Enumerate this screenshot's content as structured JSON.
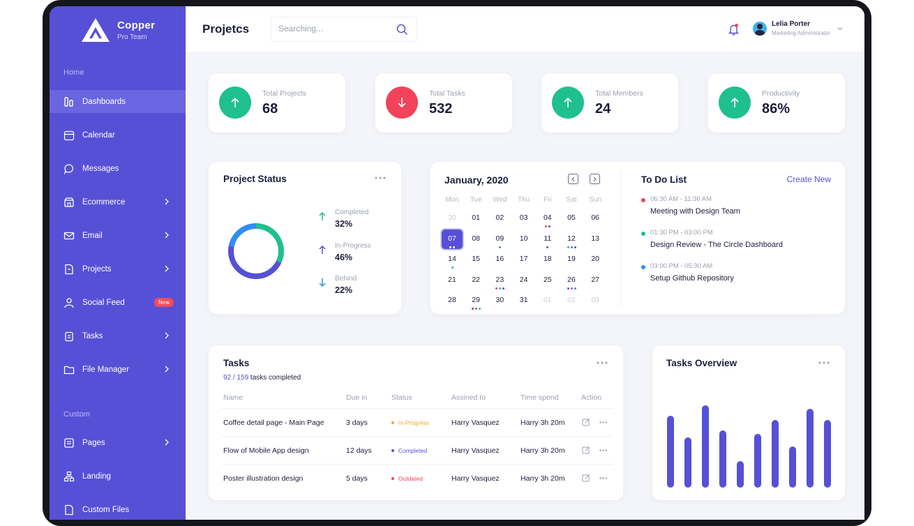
{
  "sidebar": {
    "brand_name": "Copper",
    "brand_sub": "Pro Team",
    "section_home": "Home",
    "section_custom": "Custom",
    "items": [
      {
        "label": "Dashboards"
      },
      {
        "label": "Calendar"
      },
      {
        "label": "Messages"
      },
      {
        "label": "Ecommerce"
      },
      {
        "label": "Email"
      },
      {
        "label": "Projects"
      },
      {
        "label": "Social Feed",
        "badge": "New"
      },
      {
        "label": "Tasks"
      },
      {
        "label": "File Manager"
      },
      {
        "label": "Pages"
      },
      {
        "label": "Landing"
      },
      {
        "label": "Custom Files"
      }
    ]
  },
  "header": {
    "title": "Projetcs",
    "search_placeholder": "Searching...",
    "user_name": "Lelia Porter",
    "user_role": "Marketing Administrator"
  },
  "stats": [
    {
      "label": "Total Projects",
      "value": "68",
      "trend": "up",
      "color": "#1fc08e"
    },
    {
      "label": "Total Tasks",
      "value": "532",
      "trend": "down",
      "color": "#f2435a"
    },
    {
      "label": "Total Members",
      "value": "24",
      "trend": "up",
      "color": "#1fc08e"
    },
    {
      "label": "Productivity",
      "value": "86%",
      "trend": "up",
      "color": "#1fc08e"
    }
  ],
  "project_status": {
    "title": "Project Status",
    "items": [
      {
        "label": "Completed",
        "value": "32%",
        "percent": 32,
        "color": "#1fc08e"
      },
      {
        "label": "In-Progress",
        "value": "46%",
        "percent": 46,
        "color": "#5650d6"
      },
      {
        "label": "Behind",
        "value": "22%",
        "percent": 22,
        "color": "#2f8ef2"
      }
    ]
  },
  "calendar": {
    "title": "January, 2020",
    "weekdays": [
      "Mon",
      "Tue",
      "Wed",
      "Thu",
      "Fri",
      "Sat",
      "Sun"
    ],
    "weeks": [
      [
        "30",
        "01",
        "02",
        "03",
        "04",
        "05",
        "06"
      ],
      [
        "07",
        "08",
        "09",
        "10",
        "11",
        "12",
        "13"
      ],
      [
        "14",
        "15",
        "16",
        "17",
        "18",
        "19",
        "20"
      ],
      [
        "21",
        "22",
        "23",
        "24",
        "25",
        "26",
        "27"
      ],
      [
        "28",
        "29",
        "30",
        "31",
        "01",
        "02",
        "03"
      ]
    ],
    "selected": "07"
  },
  "todo": {
    "title": "To Do List",
    "create_label": "Create New",
    "items": [
      {
        "time": "06:30 AM - 11:30 AM",
        "text": "Meeting with Design Team",
        "color": "#f2435a"
      },
      {
        "time": "01:30 PM - 03:00 PM",
        "text": "Design Review - The Circle Dashboard",
        "color": "#1fc08e"
      },
      {
        "time": "03:00 PM - 05:30 AM",
        "text": "Setup Github Repository",
        "color": "#2f8ef2"
      }
    ]
  },
  "tasks": {
    "title": "Tasks",
    "done_count": "92 / 159",
    "done_suffix": " tasks completed",
    "columns": [
      "Name",
      "Due in",
      "Status",
      "Assined to",
      "Time spend",
      "Action"
    ],
    "rows": [
      {
        "name": "Coffee detail page - Main Page",
        "due": "3 days",
        "status": "In-Progress",
        "status_color": "#f5a623",
        "assignee": "Harry Vasquez",
        "time": "Harry 3h 20m"
      },
      {
        "name": "Flow of Mobile App design",
        "due": "12 days",
        "status": "Completed",
        "status_color": "#5650d6",
        "assignee": "Harry Vasquez",
        "time": "Harry 3h 20m"
      },
      {
        "name": "Poster illustration design",
        "due": "5 days",
        "status": "Outdated",
        "status_color": "#f2435a",
        "assignee": "Harry Vasquez",
        "time": "Harry 3h 20m"
      }
    ]
  },
  "overview": {
    "title": "Tasks Overview",
    "values": [
      100,
      70,
      115,
      80,
      37,
      75,
      95,
      58,
      110,
      95
    ],
    "color": "#5650d6"
  }
}
